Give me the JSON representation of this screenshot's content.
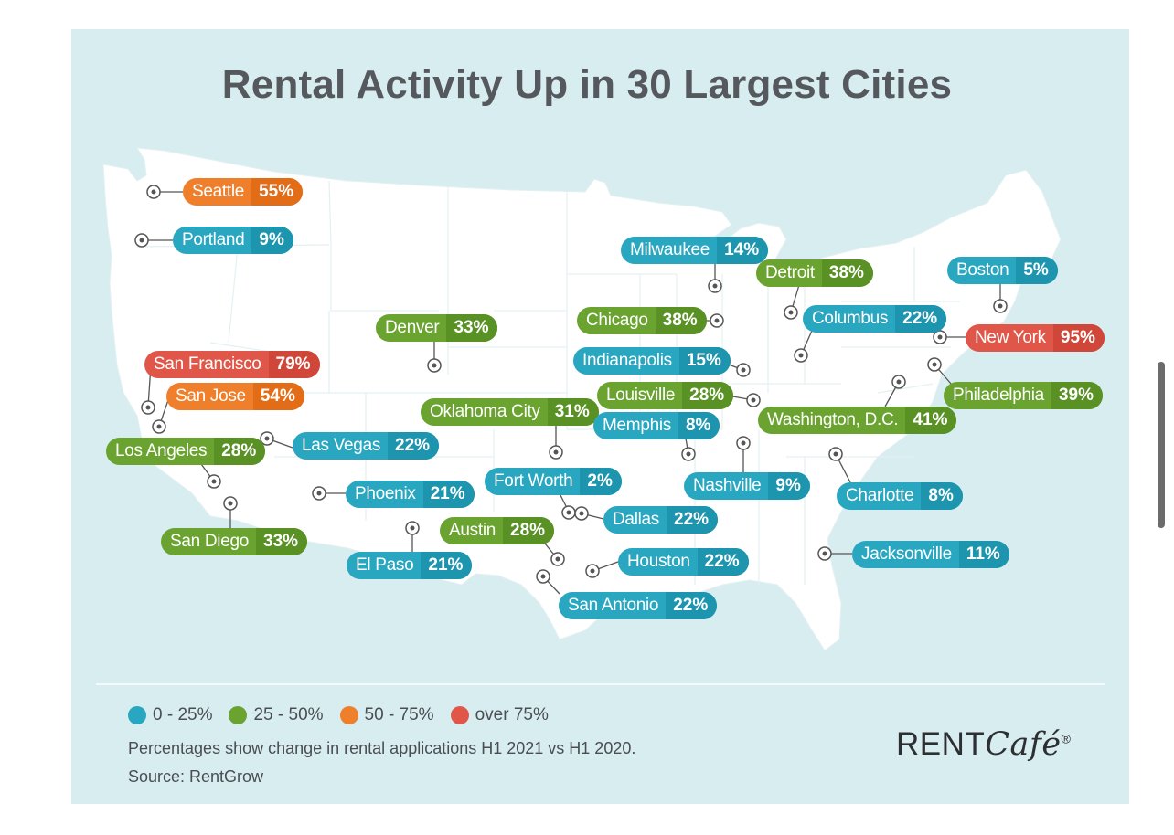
{
  "title": "Rental Activity Up in 30 Largest Cities",
  "colors": {
    "0-25": "#2aa7c0",
    "25-50": "#6aa330",
    "50-75": "#f07f2b",
    "over75": "#e0574a"
  },
  "cities": [
    {
      "name": "Seattle",
      "value": "55%",
      "band": "orange"
    },
    {
      "name": "Portland",
      "value": "9%",
      "band": "blue"
    },
    {
      "name": "San Francisco",
      "value": "79%",
      "band": "red"
    },
    {
      "name": "San Jose",
      "value": "54%",
      "band": "orange"
    },
    {
      "name": "Los Angeles",
      "value": "28%",
      "band": "green"
    },
    {
      "name": "San Diego",
      "value": "33%",
      "band": "green"
    },
    {
      "name": "Las Vegas",
      "value": "22%",
      "band": "blue"
    },
    {
      "name": "Phoenix",
      "value": "21%",
      "band": "blue"
    },
    {
      "name": "El Paso",
      "value": "21%",
      "band": "blue"
    },
    {
      "name": "Denver",
      "value": "33%",
      "band": "green"
    },
    {
      "name": "Oklahoma City",
      "value": "31%",
      "band": "green"
    },
    {
      "name": "Fort Worth",
      "value": "2%",
      "band": "blue"
    },
    {
      "name": "Austin",
      "value": "28%",
      "band": "green"
    },
    {
      "name": "Dallas",
      "value": "22%",
      "band": "blue"
    },
    {
      "name": "Houston",
      "value": "22%",
      "band": "blue"
    },
    {
      "name": "San Antonio",
      "value": "22%",
      "band": "blue"
    },
    {
      "name": "Milwaukee",
      "value": "14%",
      "band": "blue"
    },
    {
      "name": "Chicago",
      "value": "38%",
      "band": "green"
    },
    {
      "name": "Indianapolis",
      "value": "15%",
      "band": "blue"
    },
    {
      "name": "Louisville",
      "value": "28%",
      "band": "green"
    },
    {
      "name": "Memphis",
      "value": "8%",
      "band": "blue"
    },
    {
      "name": "Nashville",
      "value": "9%",
      "band": "blue"
    },
    {
      "name": "Detroit",
      "value": "38%",
      "band": "green"
    },
    {
      "name": "Columbus",
      "value": "22%",
      "band": "blue"
    },
    {
      "name": "Washington, D.C.",
      "value": "41%",
      "band": "green"
    },
    {
      "name": "Charlotte",
      "value": "8%",
      "band": "blue"
    },
    {
      "name": "Jacksonville",
      "value": "11%",
      "band": "blue"
    },
    {
      "name": "Boston",
      "value": "5%",
      "band": "blue"
    },
    {
      "name": "New York",
      "value": "95%",
      "band": "red"
    },
    {
      "name": "Philadelphia",
      "value": "39%",
      "band": "green"
    }
  ],
  "legend": [
    {
      "label": "0 - 25%",
      "band": "blue"
    },
    {
      "label": "25 - 50%",
      "band": "green"
    },
    {
      "label": "50 - 75%",
      "band": "orange"
    },
    {
      "label": "over 75%",
      "band": "red"
    }
  ],
  "note": "Percentages show change in rental applications H1 2021 vs H1 2020.",
  "source": "Source: RentGrow",
  "brand": {
    "main": "RENT",
    "italic": "Café",
    "mark": "®"
  }
}
